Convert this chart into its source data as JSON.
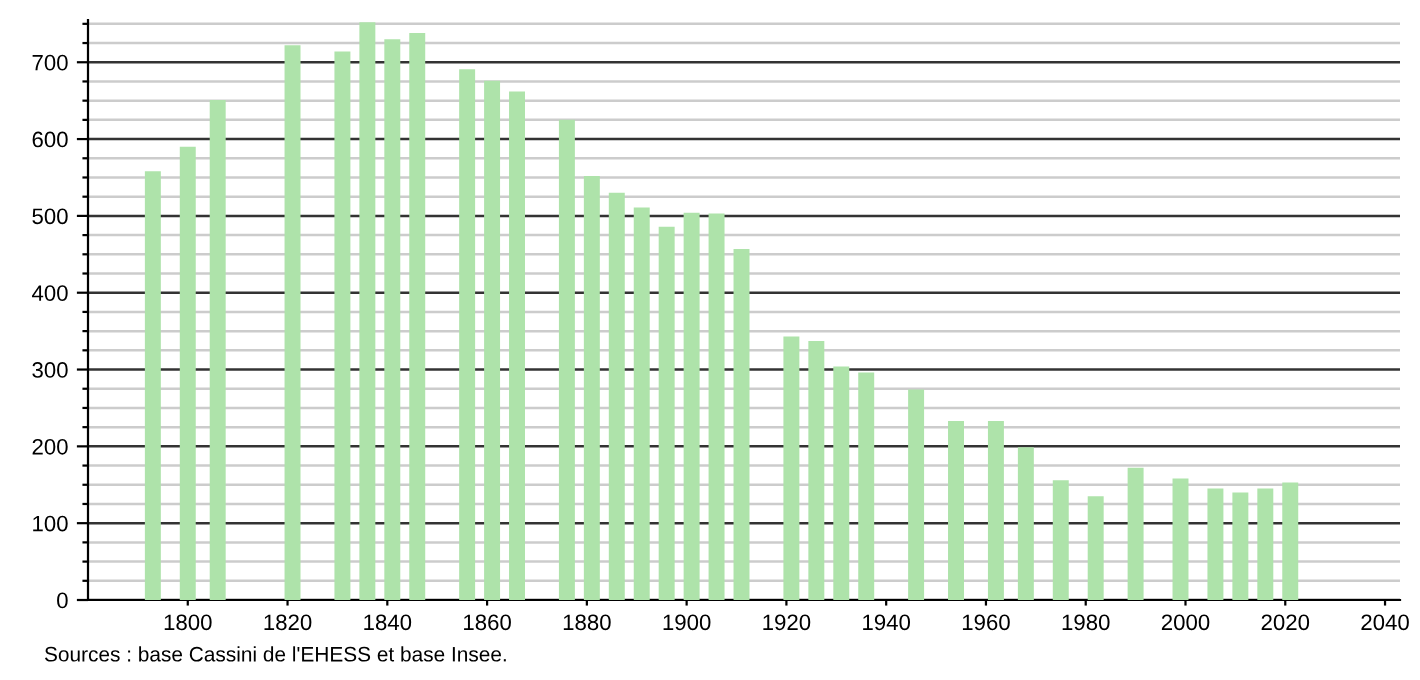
{
  "chart_data": {
    "type": "bar",
    "x": [
      1793,
      1800,
      1806,
      1821,
      1831,
      1836,
      1841,
      1846,
      1856,
      1861,
      1866,
      1876,
      1881,
      1886,
      1891,
      1896,
      1901,
      1906,
      1911,
      1921,
      1926,
      1931,
      1936,
      1946,
      1954,
      1962,
      1968,
      1975,
      1982,
      1990,
      1999,
      2006,
      2011,
      2016,
      2021
    ],
    "values": [
      558,
      590,
      651,
      722,
      714,
      752,
      730,
      738,
      691,
      676,
      662,
      625,
      552,
      530,
      511,
      486,
      504,
      503,
      457,
      343,
      337,
      304,
      296,
      274,
      233,
      233,
      199,
      156,
      135,
      172,
      158,
      145,
      140,
      145,
      153
    ],
    "color": "#aee3aa",
    "xlim": [
      1780,
      2043
    ],
    "xticks": [
      1800,
      1820,
      1840,
      1860,
      1880,
      1900,
      1920,
      1940,
      1960,
      1980,
      2000,
      2020,
      2040
    ],
    "ylim": [
      0,
      755
    ],
    "yticks": [
      0,
      {
        "value": 25,
        "label": null
      },
      {
        "value": 50,
        "label": null
      },
      {
        "value": 75,
        "label": null
      },
      100,
      {
        "value": 125,
        "label": null
      },
      {
        "value": 150,
        "label": null
      },
      {
        "value": 175,
        "label": null
      },
      200,
      {
        "value": 225,
        "label": null
      },
      {
        "value": 250,
        "label": null
      },
      {
        "value": 275,
        "label": null
      },
      300,
      {
        "value": 325,
        "label": null
      },
      {
        "value": 350,
        "label": null
      },
      {
        "value": 375,
        "label": null
      },
      400,
      {
        "value": 425,
        "label": null
      },
      {
        "value": 450,
        "label": null
      },
      {
        "value": 475,
        "label": null
      },
      500,
      {
        "value": 525,
        "label": null
      },
      {
        "value": 550,
        "label": null
      },
      {
        "value": 575,
        "label": null
      },
      600,
      {
        "value": 625,
        "label": null
      },
      {
        "value": 650,
        "label": null
      },
      {
        "value": 675,
        "label": null
      },
      700,
      {
        "value": 725,
        "label": null
      },
      {
        "value": 750,
        "label": null
      }
    ],
    "grid": "y",
    "annotations": [
      "Sources : base Cassini de l'EHESS et base Insee."
    ]
  }
}
